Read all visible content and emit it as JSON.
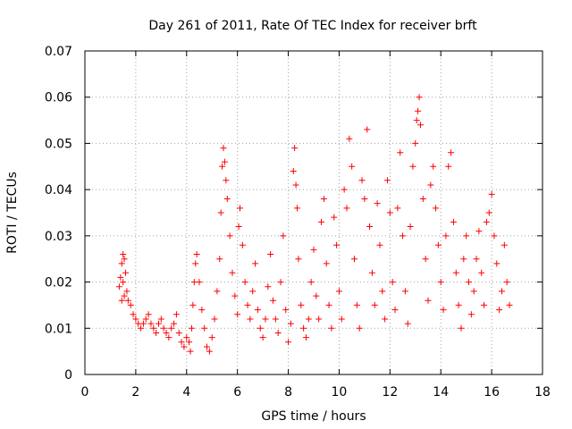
{
  "chart_data": {
    "type": "scatter",
    "title": "Day 261 of 2011, Rate Of TEC Index for receiver brft",
    "xlabel": "GPS time / hours",
    "ylabel": "ROTI / TECUs",
    "xlim": [
      0,
      18
    ],
    "ylim": [
      0,
      0.07
    ],
    "xticks": [
      0,
      2,
      4,
      6,
      8,
      10,
      12,
      14,
      16,
      18
    ],
    "xtick_labels": [
      "0",
      "2",
      "4",
      "6",
      "8",
      "10",
      "12",
      "14",
      "16",
      "18"
    ],
    "yticks": [
      0,
      0.01,
      0.02,
      0.03,
      0.04,
      0.05,
      0.06,
      0.07
    ],
    "ytick_labels": [
      "0",
      "0.01",
      "0.02",
      "0.03",
      "0.04",
      "0.05",
      "0.06",
      "0.07"
    ],
    "grid": true,
    "marker": "+",
    "color": "#ff0000",
    "series": [
      {
        "name": "ROTI",
        "points": [
          [
            1.35,
            0.019
          ],
          [
            1.4,
            0.021
          ],
          [
            1.45,
            0.024
          ],
          [
            1.5,
            0.026
          ],
          [
            1.55,
            0.025
          ],
          [
            1.6,
            0.022
          ],
          [
            1.65,
            0.018
          ],
          [
            1.5,
            0.02
          ],
          [
            1.55,
            0.017
          ],
          [
            1.45,
            0.016
          ],
          [
            1.7,
            0.016
          ],
          [
            1.8,
            0.015
          ],
          [
            1.9,
            0.013
          ],
          [
            2.0,
            0.012
          ],
          [
            2.1,
            0.011
          ],
          [
            2.2,
            0.01
          ],
          [
            2.3,
            0.011
          ],
          [
            2.4,
            0.012
          ],
          [
            2.5,
            0.013
          ],
          [
            2.6,
            0.011
          ],
          [
            2.7,
            0.01
          ],
          [
            2.8,
            0.009
          ],
          [
            2.9,
            0.011
          ],
          [
            3.0,
            0.012
          ],
          [
            3.1,
            0.01
          ],
          [
            3.2,
            0.009
          ],
          [
            3.3,
            0.008
          ],
          [
            3.4,
            0.01
          ],
          [
            3.5,
            0.011
          ],
          [
            3.6,
            0.013
          ],
          [
            3.7,
            0.009
          ],
          [
            3.8,
            0.007
          ],
          [
            3.9,
            0.006
          ],
          [
            4.0,
            0.008
          ],
          [
            4.1,
            0.007
          ],
          [
            4.15,
            0.005
          ],
          [
            4.2,
            0.01
          ],
          [
            4.25,
            0.015
          ],
          [
            4.3,
            0.02
          ],
          [
            4.35,
            0.024
          ],
          [
            4.4,
            0.026
          ],
          [
            4.5,
            0.02
          ],
          [
            4.6,
            0.014
          ],
          [
            4.7,
            0.01
          ],
          [
            4.8,
            0.006
          ],
          [
            4.9,
            0.005
          ],
          [
            5.0,
            0.008
          ],
          [
            5.1,
            0.012
          ],
          [
            5.2,
            0.018
          ],
          [
            5.3,
            0.025
          ],
          [
            5.35,
            0.035
          ],
          [
            5.4,
            0.045
          ],
          [
            5.45,
            0.049
          ],
          [
            5.5,
            0.046
          ],
          [
            5.55,
            0.042
          ],
          [
            5.6,
            0.038
          ],
          [
            5.7,
            0.03
          ],
          [
            5.8,
            0.022
          ],
          [
            5.9,
            0.017
          ],
          [
            6.0,
            0.013
          ],
          [
            6.05,
            0.032
          ],
          [
            6.1,
            0.036
          ],
          [
            6.2,
            0.028
          ],
          [
            6.3,
            0.02
          ],
          [
            6.4,
            0.015
          ],
          [
            6.5,
            0.012
          ],
          [
            6.6,
            0.018
          ],
          [
            6.7,
            0.024
          ],
          [
            6.8,
            0.014
          ],
          [
            6.9,
            0.01
          ],
          [
            7.0,
            0.008
          ],
          [
            7.1,
            0.012
          ],
          [
            7.2,
            0.019
          ],
          [
            7.3,
            0.026
          ],
          [
            7.4,
            0.016
          ],
          [
            7.5,
            0.012
          ],
          [
            7.6,
            0.009
          ],
          [
            7.7,
            0.02
          ],
          [
            7.8,
            0.03
          ],
          [
            7.9,
            0.014
          ],
          [
            8.0,
            0.007
          ],
          [
            8.1,
            0.011
          ],
          [
            8.2,
            0.044
          ],
          [
            8.25,
            0.049
          ],
          [
            8.3,
            0.041
          ],
          [
            8.35,
            0.036
          ],
          [
            8.4,
            0.025
          ],
          [
            8.5,
            0.015
          ],
          [
            8.6,
            0.01
          ],
          [
            8.7,
            0.008
          ],
          [
            8.8,
            0.012
          ],
          [
            8.9,
            0.02
          ],
          [
            9.0,
            0.027
          ],
          [
            9.1,
            0.017
          ],
          [
            9.2,
            0.012
          ],
          [
            9.3,
            0.033
          ],
          [
            9.4,
            0.038
          ],
          [
            9.5,
            0.024
          ],
          [
            9.6,
            0.015
          ],
          [
            9.7,
            0.01
          ],
          [
            9.8,
            0.034
          ],
          [
            9.9,
            0.028
          ],
          [
            10.0,
            0.018
          ],
          [
            10.1,
            0.012
          ],
          [
            10.2,
            0.04
          ],
          [
            10.3,
            0.036
          ],
          [
            10.4,
            0.051
          ],
          [
            10.5,
            0.045
          ],
          [
            10.6,
            0.025
          ],
          [
            10.7,
            0.015
          ],
          [
            10.8,
            0.01
          ],
          [
            10.9,
            0.042
          ],
          [
            11.0,
            0.038
          ],
          [
            11.1,
            0.053
          ],
          [
            11.2,
            0.032
          ],
          [
            11.3,
            0.022
          ],
          [
            11.4,
            0.015
          ],
          [
            11.5,
            0.037
          ],
          [
            11.6,
            0.028
          ],
          [
            11.7,
            0.018
          ],
          [
            11.8,
            0.012
          ],
          [
            11.9,
            0.042
          ],
          [
            12.0,
            0.035
          ],
          [
            12.1,
            0.02
          ],
          [
            12.2,
            0.014
          ],
          [
            12.3,
            0.036
          ],
          [
            12.4,
            0.048
          ],
          [
            12.5,
            0.03
          ],
          [
            12.6,
            0.018
          ],
          [
            12.7,
            0.011
          ],
          [
            12.8,
            0.032
          ],
          [
            12.9,
            0.045
          ],
          [
            13.0,
            0.05
          ],
          [
            13.05,
            0.055
          ],
          [
            13.1,
            0.057
          ],
          [
            13.15,
            0.06
          ],
          [
            13.2,
            0.054
          ],
          [
            13.3,
            0.038
          ],
          [
            13.4,
            0.025
          ],
          [
            13.5,
            0.016
          ],
          [
            13.6,
            0.041
          ],
          [
            13.7,
            0.045
          ],
          [
            13.8,
            0.036
          ],
          [
            13.9,
            0.028
          ],
          [
            14.0,
            0.02
          ],
          [
            14.1,
            0.014
          ],
          [
            14.2,
            0.03
          ],
          [
            14.3,
            0.045
          ],
          [
            14.4,
            0.048
          ],
          [
            14.5,
            0.033
          ],
          [
            14.6,
            0.022
          ],
          [
            14.7,
            0.015
          ],
          [
            14.8,
            0.01
          ],
          [
            14.9,
            0.025
          ],
          [
            15.0,
            0.03
          ],
          [
            15.1,
            0.02
          ],
          [
            15.2,
            0.013
          ],
          [
            15.3,
            0.018
          ],
          [
            15.4,
            0.025
          ],
          [
            15.5,
            0.031
          ],
          [
            15.6,
            0.022
          ],
          [
            15.7,
            0.015
          ],
          [
            15.8,
            0.033
          ],
          [
            15.9,
            0.035
          ],
          [
            16.0,
            0.039
          ],
          [
            16.1,
            0.03
          ],
          [
            16.2,
            0.024
          ],
          [
            16.3,
            0.014
          ],
          [
            16.4,
            0.018
          ],
          [
            16.5,
            0.028
          ],
          [
            16.6,
            0.02
          ],
          [
            16.7,
            0.015
          ]
        ]
      }
    ]
  }
}
